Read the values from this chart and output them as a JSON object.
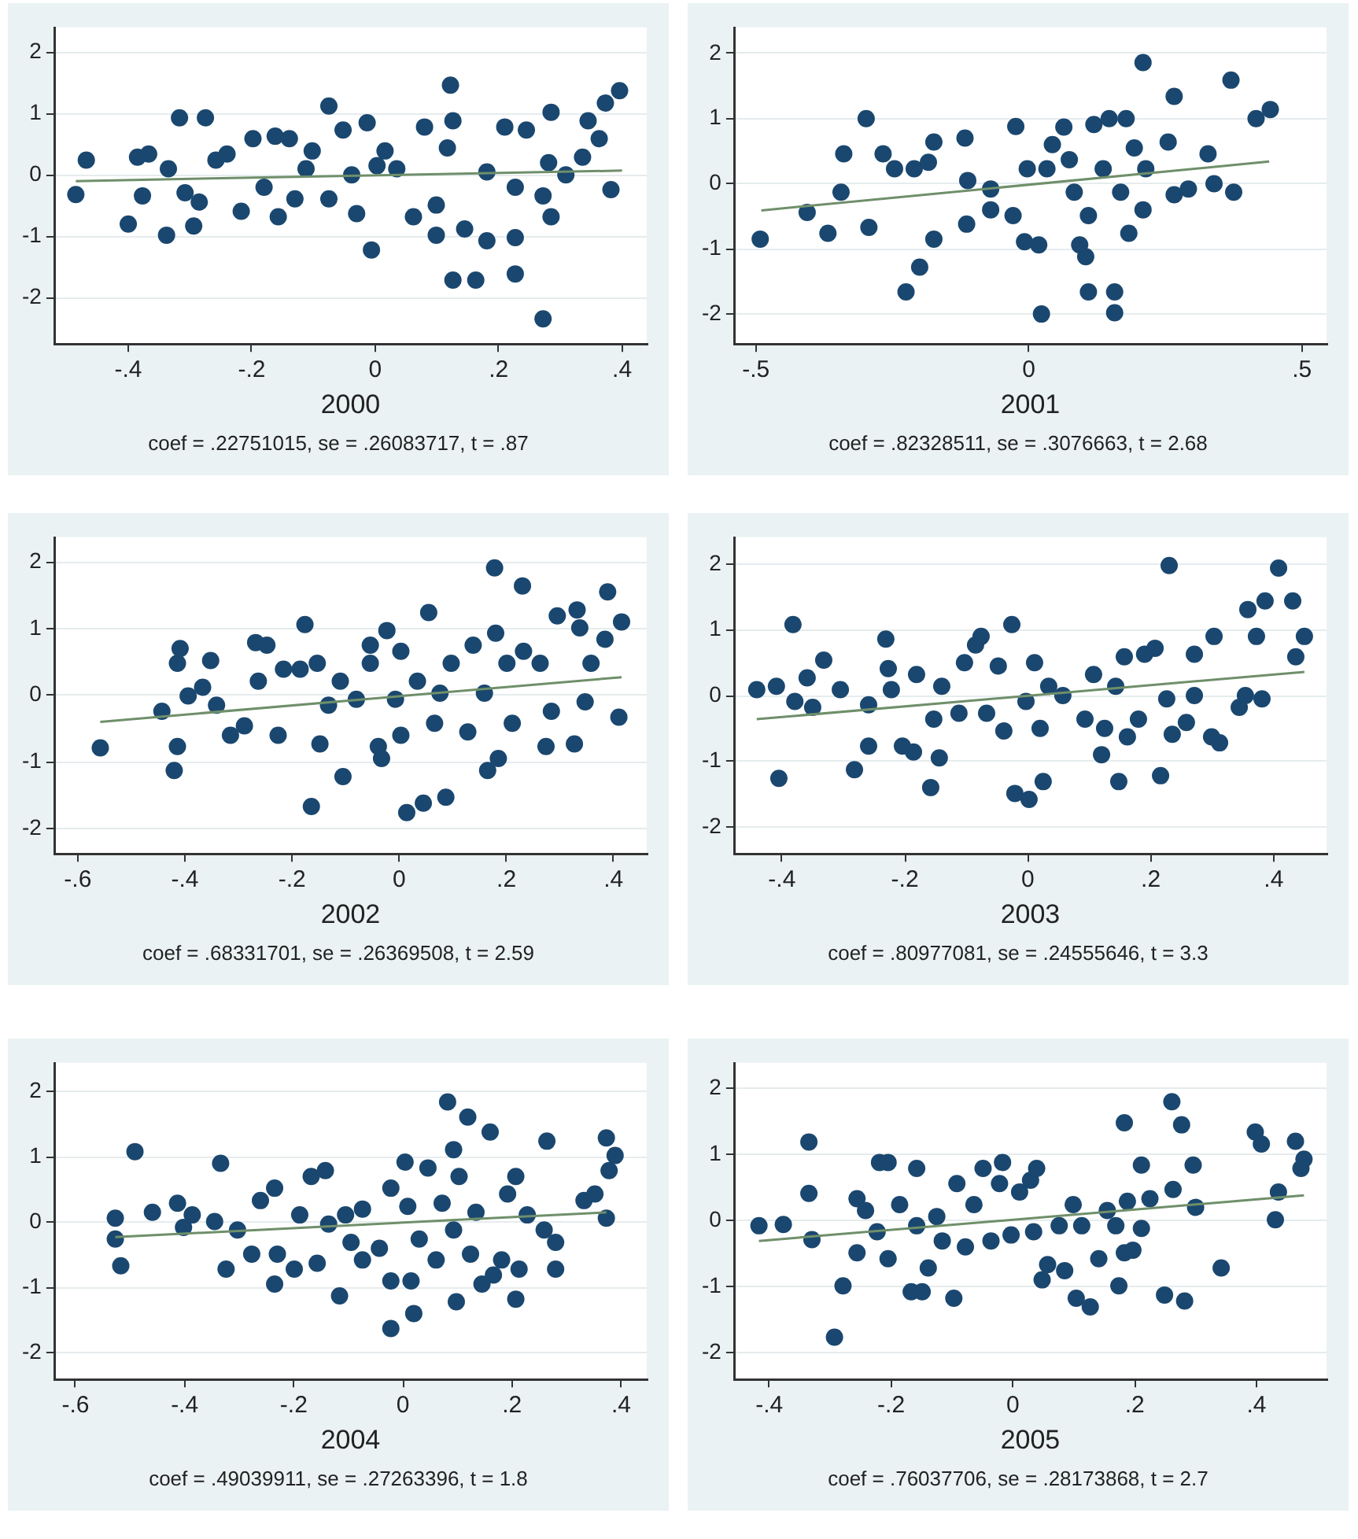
{
  "chart_data": [
    {
      "type": "scatter",
      "xlabel": "2000",
      "annotations": [
        "coef = .22751015, se = .26083717, t = .87"
      ],
      "xlim": [
        -0.52,
        0.44
      ],
      "xticks": [
        {
          "value": -0.4,
          "label": "-.4"
        },
        {
          "value": -0.2,
          "label": "-.2"
        },
        {
          "value": 0,
          "label": "0"
        },
        {
          "value": 0.2,
          "label": ".2"
        },
        {
          "value": 0.4,
          "label": ".4"
        }
      ],
      "ylim": [
        -2.75,
        2.4
      ],
      "yticks": [
        -2,
        -1,
        0,
        1,
        2
      ],
      "grid": "y",
      "marker": "circle",
      "series": [
        {
          "color": "#1a476f",
          "x": [
            -0.485,
            -0.468,
            -0.4,
            -0.385,
            -0.367,
            -0.377,
            -0.338,
            -0.317,
            -0.335,
            -0.308,
            -0.294,
            -0.275,
            -0.285,
            -0.258,
            -0.24,
            -0.217,
            -0.198,
            -0.18,
            -0.162,
            -0.157,
            -0.139,
            -0.13,
            -0.112,
            -0.102,
            -0.075,
            -0.075,
            -0.052,
            -0.038,
            -0.03,
            -0.013,
            -0.006,
            0.003,
            0.016,
            0.035,
            0.062,
            0.08,
            0.099,
            0.099,
            0.122,
            0.126,
            0.117,
            0.126,
            0.163,
            0.145,
            0.181,
            0.181,
            0.21,
            0.227,
            0.227,
            0.227,
            0.245,
            0.272,
            0.272,
            0.285,
            0.285,
            0.281,
            0.309,
            0.336,
            0.345,
            0.363,
            0.373,
            0.382,
            0.396
          ],
          "values": [
            -0.32,
            0.24,
            -0.8,
            0.29,
            0.34,
            -0.34,
            -0.98,
            0.93,
            0.1,
            -0.29,
            -0.83,
            0.93,
            -0.44,
            0.24,
            0.34,
            -0.59,
            0.59,
            -0.2,
            0.63,
            -0.68,
            0.59,
            -0.39,
            0.1,
            0.39,
            1.12,
            -0.39,
            0.73,
            0,
            -0.63,
            0.85,
            -1.22,
            0.15,
            0.39,
            0.1,
            -0.68,
            0.78,
            -0.98,
            -0.49,
            1.46,
            0.88,
            0.44,
            -1.71,
            -1.71,
            -0.88,
            -1.07,
            0.05,
            0.78,
            -1.02,
            -1.61,
            -0.2,
            0.73,
            -0.34,
            -2.34,
            1.02,
            -0.68,
            0.2,
            0,
            0.29,
            0.88,
            0.59,
            1.17,
            -0.24,
            1.37
          ]
        },
        {
          "type": "line",
          "marker": "none",
          "color": "#6f8f6a",
          "x": [
            -0.485,
            0.4
          ],
          "values": [
            -0.1,
            0.07
          ]
        }
      ]
    },
    {
      "type": "scatter",
      "xlabel": "2001",
      "annotations": [
        "coef = .82328511, se = .3076663, t = 2.68"
      ],
      "xlim": [
        -0.54,
        0.545
      ],
      "xticks": [
        {
          "value": -0.5,
          "label": "-.5"
        },
        {
          "value": 0,
          "label": "0"
        },
        {
          "value": 0.5,
          "label": ".5"
        }
      ],
      "ylim": [
        -2.46,
        2.4
      ],
      "yticks": [
        -2,
        -1,
        0,
        1,
        2
      ],
      "grid": "y",
      "marker": "circle",
      "series": [
        {
          "color": "#1a476f",
          "x": [
            -0.492,
            -0.406,
            -0.368,
            -0.339,
            -0.344,
            -0.298,
            -0.293,
            -0.267,
            -0.246,
            -0.225,
            -0.2,
            -0.21,
            -0.174,
            -0.174,
            -0.184,
            -0.117,
            -0.114,
            -0.112,
            -0.07,
            -0.07,
            -0.024,
            -0.029,
            -0.003,
            -0.008,
            0.018,
            0.023,
            0.033,
            0.043,
            0.064,
            0.074,
            0.083,
            0.093,
            0.104,
            0.109,
            0.109,
            0.119,
            0.136,
            0.147,
            0.157,
            0.157,
            0.168,
            0.178,
            0.183,
            0.193,
            0.209,
            0.214,
            0.209,
            0.255,
            0.266,
            0.266,
            0.292,
            0.328,
            0.339,
            0.37,
            0.375,
            0.416,
            0.442
          ],
          "values": [
            -0.85,
            -0.44,
            -0.76,
            0.46,
            -0.13,
            1.0,
            -0.67,
            0.46,
            0.23,
            -1.66,
            -1.28,
            0.23,
            0.64,
            -0.85,
            0.33,
            0.7,
            -0.62,
            0.05,
            -0.08,
            -0.4,
            0.88,
            -0.49,
            0.23,
            -0.89,
            -0.94,
            -2.0,
            0.23,
            0.6,
            0.87,
            0.37,
            -0.13,
            -0.94,
            -1.12,
            -1.66,
            -0.49,
            0.91,
            0.23,
            1.0,
            -1.66,
            -1.98,
            -0.13,
            1.0,
            -0.76,
            0.55,
            1.86,
            0.23,
            -0.4,
            0.64,
            1.34,
            -0.17,
            -0.08,
            0.46,
            0,
            1.59,
            -0.13,
            1.0,
            1.14
          ]
        },
        {
          "type": "line",
          "marker": "none",
          "color": "#6f8f6a",
          "x": [
            -0.49,
            0.44
          ],
          "values": [
            -0.41,
            0.34
          ]
        }
      ]
    },
    {
      "type": "scatter",
      "xlabel": "2002",
      "annotations": [
        "coef = .68331701, se = .26369508, t = 2.59"
      ],
      "xlim": [
        -0.644,
        0.462
      ],
      "xticks": [
        {
          "value": -0.6,
          "label": "-.6"
        },
        {
          "value": -0.4,
          "label": "-.4"
        },
        {
          "value": -0.2,
          "label": "-.2"
        },
        {
          "value": 0,
          "label": "0"
        },
        {
          "value": 0.2,
          "label": ".2"
        },
        {
          "value": 0.4,
          "label": ".4"
        }
      ],
      "ylim": [
        -2.38,
        2.37
      ],
      "yticks": [
        -2,
        -1,
        0,
        1,
        2
      ],
      "grid": "y",
      "marker": "circle",
      "series": [
        {
          "color": "#1a476f",
          "x": [
            -0.558,
            -0.443,
            -0.42,
            -0.414,
            -0.409,
            -0.414,
            -0.394,
            -0.367,
            -0.352,
            -0.341,
            -0.315,
            -0.289,
            -0.268,
            -0.247,
            -0.263,
            -0.226,
            -0.216,
            -0.185,
            -0.176,
            -0.164,
            -0.153,
            -0.148,
            -0.132,
            -0.11,
            -0.105,
            -0.08,
            -0.054,
            -0.054,
            -0.039,
            -0.033,
            -0.023,
            -0.007,
            0.003,
            0.003,
            0.014,
            0.034,
            0.045,
            0.055,
            0.066,
            0.076,
            0.087,
            0.097,
            0.128,
            0.138,
            0.159,
            0.165,
            0.178,
            0.185,
            0.18,
            0.201,
            0.211,
            0.23,
            0.232,
            0.263,
            0.274,
            0.284,
            0.295,
            0.327,
            0.332,
            0.337,
            0.347,
            0.358,
            0.389,
            0.384,
            0.41,
            0.415
          ],
          "values": [
            -0.79,
            -0.24,
            -1.13,
            -0.77,
            0.7,
            0.48,
            -0.01,
            0.12,
            0.52,
            -0.15,
            -0.6,
            -0.46,
            0.79,
            0.75,
            0.21,
            -0.6,
            0.39,
            0.39,
            1.06,
            -1.67,
            0.48,
            -0.73,
            -0.15,
            0.21,
            -1.22,
            -0.06,
            0.75,
            0.48,
            -0.77,
            -0.95,
            0.97,
            -0.06,
            0.66,
            -0.6,
            -1.76,
            0.21,
            -1.62,
            1.24,
            -0.42,
            0.03,
            -1.53,
            0.48,
            -0.55,
            0.75,
            0.03,
            -1.13,
            1.91,
            -0.95,
            0.93,
            0.48,
            -0.42,
            1.64,
            0.66,
            0.48,
            -0.77,
            -0.24,
            1.19,
            -0.73,
            1.28,
            1.01,
            -0.1,
            0.48,
            1.55,
            0.84,
            -0.33,
            1.1
          ]
        },
        {
          "type": "line",
          "marker": "none",
          "color": "#6f8f6a",
          "x": [
            -0.558,
            0.415
          ],
          "values": [
            -0.4,
            0.27
          ]
        }
      ]
    },
    {
      "type": "scatter",
      "xlabel": "2003",
      "annotations": [
        "coef = .80977081, se = .24555646, t = 3.3"
      ],
      "xlim": [
        -0.478,
        0.486
      ],
      "xticks": [
        {
          "value": -0.4,
          "label": "-.4"
        },
        {
          "value": -0.2,
          "label": "-.2"
        },
        {
          "value": 0,
          "label": "0"
        },
        {
          "value": 0.2,
          "label": ".2"
        },
        {
          "value": 0.4,
          "label": ".4"
        }
      ],
      "ylim": [
        -2.41,
        2.41
      ],
      "yticks": [
        -2,
        -1,
        0,
        1,
        2
      ],
      "grid": "y",
      "marker": "circle",
      "series": [
        {
          "color": "#1a476f",
          "x": [
            -0.441,
            -0.409,
            -0.405,
            -0.382,
            -0.379,
            -0.359,
            -0.35,
            -0.332,
            -0.305,
            -0.282,
            -0.259,
            -0.259,
            -0.231,
            -0.227,
            -0.222,
            -0.204,
            -0.186,
            -0.181,
            -0.158,
            -0.153,
            -0.144,
            -0.14,
            -0.112,
            -0.103,
            -0.085,
            -0.076,
            -0.067,
            -0.048,
            -0.039,
            -0.026,
            -0.021,
            -0.003,
            0.002,
            0.011,
            0.02,
            0.025,
            0.034,
            0.057,
            0.093,
            0.107,
            0.12,
            0.125,
            0.143,
            0.148,
            0.157,
            0.162,
            0.18,
            0.19,
            0.207,
            0.216,
            0.226,
            0.23,
            0.235,
            0.258,
            0.271,
            0.271,
            0.299,
            0.303,
            0.312,
            0.344,
            0.354,
            0.358,
            0.372,
            0.381,
            0.386,
            0.408,
            0.431,
            0.436,
            0.45
          ],
          "values": [
            0.09,
            0.14,
            -1.26,
            1.08,
            -0.09,
            0.27,
            -0.18,
            0.54,
            0.09,
            -1.13,
            -0.14,
            -0.77,
            0.86,
            0.41,
            0.09,
            -0.77,
            -0.86,
            0.32,
            -1.4,
            -0.36,
            -0.95,
            0.14,
            -0.27,
            0.5,
            0.77,
            0.9,
            -0.27,
            0.45,
            -0.54,
            1.08,
            -1.49,
            -0.09,
            -1.58,
            0.5,
            -0.5,
            -1.31,
            0.14,
            0,
            -0.36,
            0.32,
            -0.9,
            -0.5,
            0.14,
            -1.31,
            0.59,
            -0.63,
            -0.36,
            0.63,
            0.72,
            -1.22,
            -0.05,
            1.98,
            -0.59,
            -0.41,
            0.63,
            0,
            -0.63,
            0.9,
            -0.72,
            -0.18,
            0,
            1.31,
            0.9,
            -0.05,
            1.44,
            1.94,
            1.44,
            0.59,
            0.9
          ]
        },
        {
          "type": "line",
          "marker": "none",
          "color": "#6f8f6a",
          "x": [
            -0.441,
            0.45
          ],
          "values": [
            -0.36,
            0.36
          ]
        }
      ]
    },
    {
      "type": "scatter",
      "xlabel": "2004",
      "annotations": [
        "coef = .49039911, se = .27263396, t = 1.8"
      ],
      "xlim": [
        -0.639,
        0.447
      ],
      "xticks": [
        {
          "value": -0.6,
          "label": "-.6"
        },
        {
          "value": -0.4,
          "label": "-.4"
        },
        {
          "value": -0.2,
          "label": "-.2"
        },
        {
          "value": 0,
          "label": "0"
        },
        {
          "value": 0.2,
          "label": ".2"
        },
        {
          "value": 0.4,
          "label": ".4"
        }
      ],
      "ylim": [
        -2.41,
        2.44
      ],
      "yticks": [
        -2,
        -1,
        0,
        1,
        2
      ],
      "grid": "y",
      "marker": "circle",
      "series": [
        {
          "color": "#1a476f",
          "x": [
            -0.527,
            -0.527,
            -0.517,
            -0.491,
            -0.459,
            -0.413,
            -0.402,
            -0.386,
            -0.345,
            -0.334,
            -0.324,
            -0.303,
            -0.277,
            -0.261,
            -0.235,
            -0.235,
            -0.23,
            -0.199,
            -0.189,
            -0.168,
            -0.157,
            -0.142,
            -0.136,
            -0.116,
            -0.105,
            -0.095,
            -0.074,
            -0.074,
            -0.043,
            -0.022,
            -0.022,
            -0.022,
            0.004,
            0.009,
            0.015,
            0.02,
            0.03,
            0.046,
            0.061,
            0.072,
            0.082,
            0.093,
            0.093,
            0.098,
            0.103,
            0.119,
            0.124,
            0.134,
            0.145,
            0.16,
            0.166,
            0.181,
            0.192,
            0.207,
            0.207,
            0.213,
            0.228,
            0.259,
            0.264,
            0.28,
            0.28,
            0.332,
            0.352,
            0.373,
            0.373,
            0.378,
            0.389
          ],
          "values": [
            0.06,
            -0.26,
            -0.67,
            1.08,
            0.15,
            0.29,
            -0.08,
            0.11,
            0.01,
            0.9,
            -0.72,
            -0.12,
            -0.49,
            0.33,
            0.52,
            -0.95,
            -0.49,
            -0.72,
            0.11,
            0.7,
            -0.63,
            0.79,
            -0.03,
            -1.13,
            0.11,
            -0.31,
            -0.58,
            0.2,
            -0.4,
            -0.9,
            -1.63,
            0.52,
            0.92,
            0.24,
            -0.9,
            -1.4,
            -0.26,
            0.83,
            -0.58,
            0.29,
            1.84,
            -0.12,
            1.11,
            -1.22,
            0.7,
            1.61,
            -0.49,
            0.15,
            -0.95,
            1.38,
            -0.81,
            -0.58,
            0.43,
            0.7,
            -1.18,
            -0.72,
            0.11,
            -0.12,
            1.24,
            -0.31,
            -0.72,
            0.33,
            0.43,
            0.06,
            1.29,
            0.79,
            1.02
          ]
        },
        {
          "type": "line",
          "marker": "none",
          "color": "#6f8f6a",
          "x": [
            -0.527,
            0.373
          ],
          "values": [
            -0.23,
            0.15
          ]
        }
      ]
    },
    {
      "type": "scatter",
      "xlabel": "2005",
      "annotations": [
        "coef = .76037706, se = .28173868, t = 2.7"
      ],
      "xlim": [
        -0.458,
        0.515
      ],
      "xticks": [
        {
          "value": -0.4,
          "label": "-.4"
        },
        {
          "value": -0.2,
          "label": "-.2"
        },
        {
          "value": 0,
          "label": "0"
        },
        {
          "value": 0.2,
          "label": ".2"
        },
        {
          "value": 0.4,
          "label": ".4"
        }
      ],
      "ylim": [
        -2.41,
        2.39
      ],
      "yticks": [
        -2,
        -1,
        0,
        1,
        2
      ],
      "grid": "y",
      "marker": "circle",
      "series": [
        {
          "color": "#1a476f",
          "x": [
            -0.417,
            -0.377,
            -0.335,
            -0.335,
            -0.33,
            -0.293,
            -0.279,
            -0.256,
            -0.256,
            -0.242,
            -0.223,
            -0.219,
            -0.205,
            -0.205,
            -0.186,
            -0.167,
            -0.158,
            -0.158,
            -0.149,
            -0.139,
            -0.125,
            -0.116,
            -0.097,
            -0.092,
            -0.078,
            -0.064,
            -0.049,
            -0.036,
            -0.022,
            -0.017,
            -0.003,
            0.011,
            0.029,
            0.039,
            0.034,
            0.048,
            0.057,
            0.076,
            0.085,
            0.099,
            0.104,
            0.113,
            0.127,
            0.141,
            0.155,
            0.169,
            0.174,
            0.183,
            0.183,
            0.188,
            0.197,
            0.211,
            0.211,
            0.225,
            0.249,
            0.261,
            0.263,
            0.277,
            0.282,
            0.296,
            0.3,
            0.342,
            0.398,
            0.408,
            0.431,
            0.436,
            0.464,
            0.473,
            0.478
          ],
          "values": [
            -0.08,
            -0.06,
            1.19,
            0.41,
            -0.29,
            -1.77,
            -0.99,
            0.33,
            -0.49,
            0.15,
            -0.17,
            0.88,
            0.88,
            -0.58,
            0.24,
            -1.08,
            0.79,
            -0.08,
            -1.08,
            -0.72,
            0.06,
            -0.31,
            -1.18,
            0.56,
            -0.4,
            0.24,
            0.79,
            -0.31,
            0.56,
            0.88,
            -0.22,
            0.43,
            0.61,
            0.79,
            -0.17,
            -0.9,
            -0.67,
            -0.08,
            -0.76,
            0.24,
            -1.18,
            -0.08,
            -1.31,
            -0.58,
            0.15,
            -0.08,
            -0.99,
            1.48,
            -0.49,
            0.29,
            -0.45,
            0.84,
            -0.12,
            0.33,
            -1.13,
            1.8,
            0.47,
            1.45,
            -1.22,
            0.84,
            0.2,
            -0.72,
            1.34,
            1.16,
            0.01,
            0.43,
            1.2,
            0.79,
            0.93
          ]
        },
        {
          "type": "line",
          "marker": "none",
          "color": "#6f8f6a",
          "x": [
            -0.417,
            0.478
          ],
          "values": [
            -0.31,
            0.38
          ]
        }
      ]
    }
  ]
}
